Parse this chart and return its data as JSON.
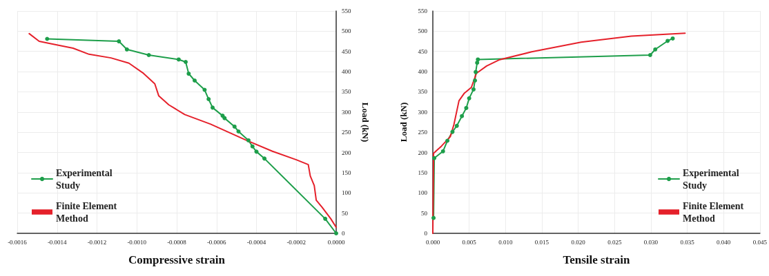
{
  "chart_data": [
    {
      "type": "line",
      "xlabel": "Compressive strain",
      "y2label": "Load (kN)",
      "xlim": [
        -0.0016,
        0
      ],
      "xticks": [
        {
          "value": -0.0016,
          "label": "-0.0016"
        },
        {
          "value": -0.0014,
          "label": "-0.0014"
        },
        {
          "value": -0.0012,
          "label": "-0.0012"
        },
        {
          "value": -0.001,
          "label": "-0.0010"
        },
        {
          "value": -0.0008,
          "label": "-0.0008"
        },
        {
          "value": -0.0006,
          "label": "-0.0006"
        },
        {
          "value": -0.0004,
          "label": "-0.0004"
        },
        {
          "value": -0.0002,
          "label": "-0.0002"
        },
        {
          "value": 0,
          "label": "0.0000"
        }
      ],
      "y2lim": [
        0,
        550
      ],
      "y2ticks": [
        0,
        50,
        100,
        150,
        200,
        250,
        300,
        350,
        400,
        450,
        500,
        550
      ],
      "grid": true,
      "legend": "bottom left",
      "series": [
        {
          "name": "Experimental Study",
          "color": "#1d9e4a",
          "marker": "circle",
          "axis": "y2",
          "x": [
            -0.00145,
            -0.00109,
            -0.00105,
            -0.00094,
            -0.00079,
            -0.000755,
            -0.00074,
            -0.00071,
            -0.00066,
            -0.00064,
            -0.00062,
            -0.00057,
            -0.00056,
            -0.00051,
            -0.00049,
            -0.00044,
            -0.00042,
            -0.0004,
            -0.00036,
            -5.5e-05,
            0
          ],
          "values": [
            481,
            475,
            455,
            441,
            430,
            424,
            395,
            378,
            355,
            332,
            311,
            291,
            285,
            264,
            252,
            230,
            215,
            202,
            185,
            36,
            0
          ]
        },
        {
          "name": "Finite Element Method",
          "color": "#e5202a",
          "marker": "none",
          "axis": "y2",
          "x": [
            -0.00154,
            -0.00149,
            -0.00144,
            -0.00132,
            -0.00124,
            -0.00113,
            -0.00104,
            -0.00097,
            -0.00091,
            -0.00089,
            -0.00084,
            -0.00076,
            -0.00063,
            -0.00045,
            -0.00032,
            -0.0002,
            -0.00014,
            -0.00013,
            -0.00011,
            -0.0001,
            -7e-05,
            -2.7e-05,
            0
          ],
          "values": [
            494,
            475,
            470,
            458,
            443,
            434,
            421,
            397,
            370,
            340,
            318,
            294,
            270,
            230,
            203,
            182,
            170,
            142,
            118,
            82,
            64,
            36,
            15
          ]
        }
      ]
    },
    {
      "type": "line",
      "xlabel": "Tensile strain",
      "ylabel": "Load (kN)",
      "xlim": [
        0,
        0.045
      ],
      "xticks": [
        {
          "value": 0,
          "label": "0.000"
        },
        0.005,
        {
          "value": 0.01,
          "label": "0.010"
        },
        0.015,
        {
          "value": 0.02,
          "label": "0.020"
        },
        0.025,
        {
          "value": 0.03,
          "label": "0.030"
        },
        0.035,
        {
          "value": 0.04,
          "label": "0.040"
        },
        0.045
      ],
      "ylim": [
        0,
        550
      ],
      "yticks": [
        0,
        50,
        100,
        150,
        200,
        250,
        300,
        350,
        400,
        450,
        500,
        550
      ],
      "grid": true,
      "legend": "bottom right",
      "series": [
        {
          "name": "Experimental Study",
          "color": "#1d9e4a",
          "marker": "circle",
          "x": [
            0.0001,
            0.0002,
            0.0014,
            0.002,
            0.0027,
            0.0033,
            0.004,
            0.0046,
            0.005,
            0.0056,
            0.0058,
            0.0059,
            0.0061,
            0.0062,
            0.0299,
            0.0306,
            0.0323,
            0.033
          ],
          "values": [
            38,
            186,
            203,
            229,
            251,
            266,
            290,
            310,
            334,
            356,
            378,
            399,
            422,
            430,
            441,
            455,
            476,
            482
          ]
        },
        {
          "name": "Finite Element Method",
          "color": "#e5202a",
          "marker": "none",
          "x": [
            0,
            0.0001,
            0.0012,
            0.0024,
            0.0029,
            0.0036,
            0.0043,
            0.0053,
            0.006,
            0.0074,
            0.0091,
            0.0136,
            0.0204,
            0.0273,
            0.0347
          ],
          "values": [
            0,
            198,
            216,
            239,
            269,
            328,
            346,
            361,
            396,
            414,
            429,
            449,
            473,
            488,
            495
          ]
        }
      ]
    }
  ]
}
